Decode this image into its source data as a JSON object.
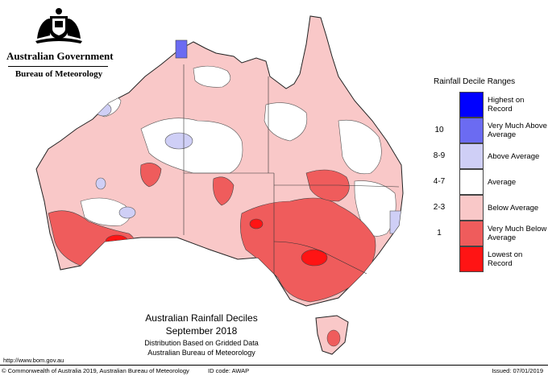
{
  "header": {
    "government": "Australian Government",
    "agency": "Bureau of Meteorology"
  },
  "legend": {
    "title": "Rainfall Decile Ranges",
    "items": [
      {
        "code": "",
        "label": "Highest on Record",
        "color": "#0000ff"
      },
      {
        "code": "10",
        "label": "Very Much Above Average",
        "color": "#6b6bf2"
      },
      {
        "code": "8-9",
        "label": "Above Average",
        "color": "#cfcff6"
      },
      {
        "code": "4-7",
        "label": "Average",
        "color": "#ffffff"
      },
      {
        "code": "2-3",
        "label": "Below Average",
        "color": "#f9c8c8"
      },
      {
        "code": "1",
        "label": "Very Much Below Average",
        "color": "#ef5c5c"
      },
      {
        "code": "",
        "label": "Lowest on Record",
        "color": "#ff1414"
      }
    ]
  },
  "map": {
    "title": "Australian Rainfall Deciles",
    "period": "September 2018",
    "subtitle1": "Distribution Based on Gridded Data",
    "subtitle2": "Australian Bureau of Meteorology"
  },
  "footer": {
    "url": "http://www.bom.gov.au",
    "copyright": "© Commonwealth of Australia 2019, Australian Bureau of Meteorology",
    "id_code": "ID code: AWAP",
    "issued": "Issued: 07/01/2019"
  }
}
